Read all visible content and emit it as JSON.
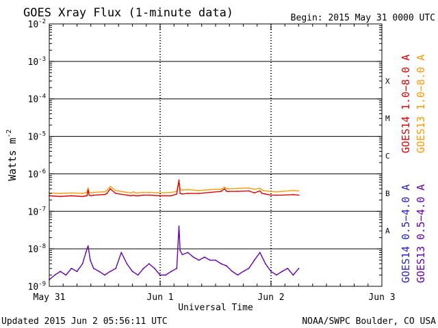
{
  "chart_data": {
    "type": "line",
    "title": "GOES Xray Flux (1-minute data)",
    "begin_label": "Begin:  2015 May 31 0000 UTC",
    "ylabel": "Watts m",
    "ylabel_superscript": "-2",
    "xlabel": "Universal Time",
    "yscale": "log",
    "xlim": [
      0,
      3
    ],
    "ylim": [
      1e-09,
      0.01
    ],
    "grid": true,
    "x_ticks": [
      {
        "value": 0,
        "label": "May 31"
      },
      {
        "value": 1,
        "label": "Jun 1"
      },
      {
        "value": 2,
        "label": "Jun 2"
      },
      {
        "value": 3,
        "label": "Jun 3"
      }
    ],
    "y_ticks": [
      {
        "exp": -9,
        "label_base": "10",
        "label_exp": "-9"
      },
      {
        "exp": -8,
        "label_base": "10",
        "label_exp": "-8"
      },
      {
        "exp": -7,
        "label_base": "10",
        "label_exp": "-7"
      },
      {
        "exp": -6,
        "label_base": "10",
        "label_exp": "-6"
      },
      {
        "exp": -5,
        "label_base": "10",
        "label_exp": "-5"
      },
      {
        "exp": -4,
        "label_base": "10",
        "label_exp": "-4"
      },
      {
        "exp": -3,
        "label_base": "10",
        "label_exp": "-3"
      },
      {
        "exp": -2,
        "label_base": "10",
        "label_exp": "-2"
      }
    ],
    "class_labels": [
      {
        "label": "A",
        "exp": -7.5
      },
      {
        "label": "B",
        "exp": -6.5
      },
      {
        "label": "C",
        "exp": -5.5
      },
      {
        "label": "M",
        "exp": -4.5
      },
      {
        "label": "X",
        "exp": -3.5
      }
    ],
    "legend_long": [
      {
        "name": "GOES14 1.0−8.0 A",
        "color": "#dd0000"
      },
      {
        "name": "GOES13 1.0−8.0 A",
        "color": "#ff9900"
      }
    ],
    "legend_short": [
      {
        "name": "GOES14 0.5−4.0 A",
        "color": "#2222cc"
      },
      {
        "name": "GOES13 0.5−4.0 A",
        "color": "#6600aa"
      }
    ],
    "series": [
      {
        "name": "GOES13 1.0−8.0 A",
        "color": "#ff9900",
        "x": [
          0,
          0.1,
          0.2,
          0.3,
          0.34,
          0.35,
          0.36,
          0.38,
          0.4,
          0.48,
          0.5,
          0.52,
          0.55,
          0.6,
          0.7,
          0.74,
          0.76,
          0.78,
          0.8,
          0.85,
          0.9,
          1.0,
          1.1,
          1.15,
          1.17,
          1.18,
          1.2,
          1.25,
          1.35,
          1.45,
          1.55,
          1.58,
          1.6,
          1.62,
          1.7,
          1.8,
          1.85,
          1.9,
          1.92,
          1.95,
          2.0,
          2.05,
          2.1,
          2.2,
          2.25
        ],
        "values": [
          3.1e-07,
          3e-07,
          3.1e-07,
          3e-07,
          3.2e-07,
          4.2e-07,
          3.2e-07,
          3.1e-07,
          3.2e-07,
          3.3e-07,
          3.3e-07,
          3.6e-07,
          4.6e-07,
          3.6e-07,
          3.2e-07,
          3.1e-07,
          3.3e-07,
          3.1e-07,
          3.1e-07,
          3.2e-07,
          3.2e-07,
          3.1e-07,
          3.2e-07,
          3.4e-07,
          6.5e-07,
          3.9e-07,
          3.7e-07,
          3.8e-07,
          3.6e-07,
          3.8e-07,
          3.9e-07,
          4.4e-07,
          4e-07,
          4e-07,
          4.1e-07,
          4.2e-07,
          3.9e-07,
          4.1e-07,
          3.7e-07,
          3.5e-07,
          3.4e-07,
          3.3e-07,
          3.4e-07,
          3.6e-07,
          3.5e-07
        ]
      },
      {
        "name": "GOES14 1.0−8.0 A",
        "color": "#dd0000",
        "x": [
          0,
          0.1,
          0.2,
          0.3,
          0.34,
          0.35,
          0.36,
          0.38,
          0.4,
          0.48,
          0.5,
          0.52,
          0.55,
          0.6,
          0.7,
          0.74,
          0.76,
          0.78,
          0.8,
          0.85,
          0.9,
          1.0,
          1.1,
          1.15,
          1.17,
          1.18,
          1.2,
          1.25,
          1.35,
          1.45,
          1.55,
          1.58,
          1.6,
          1.62,
          1.7,
          1.8,
          1.85,
          1.9,
          1.92,
          1.95,
          2.0,
          2.05,
          2.1,
          2.2,
          2.25
        ],
        "values": [
          2.6e-07,
          2.5e-07,
          2.6e-07,
          2.5e-07,
          2.6e-07,
          3.7e-07,
          2.7e-07,
          2.6e-07,
          2.7e-07,
          2.8e-07,
          2.8e-07,
          3e-07,
          4e-07,
          3e-07,
          2.7e-07,
          2.6e-07,
          2.7e-07,
          2.6e-07,
          2.6e-07,
          2.7e-07,
          2.7e-07,
          2.6e-07,
          2.6e-07,
          2.9e-07,
          6.8e-07,
          3e-07,
          2.9e-07,
          3e-07,
          3e-07,
          3.2e-07,
          3.4e-07,
          4e-07,
          3.4e-07,
          3.4e-07,
          3.4e-07,
          3.5e-07,
          3.1e-07,
          3.5e-07,
          3e-07,
          2.9e-07,
          2.7e-07,
          2.7e-07,
          2.7e-07,
          2.8e-07,
          2.7e-07
        ]
      },
      {
        "name": "GOES13 0.5−4.0 A",
        "color": "#6600aa",
        "x": [
          0,
          0.05,
          0.1,
          0.15,
          0.2,
          0.25,
          0.3,
          0.33,
          0.35,
          0.37,
          0.4,
          0.45,
          0.5,
          0.55,
          0.6,
          0.65,
          0.7,
          0.75,
          0.8,
          0.85,
          0.9,
          0.95,
          1.0,
          1.05,
          1.1,
          1.15,
          1.17,
          1.18,
          1.2,
          1.25,
          1.3,
          1.35,
          1.4,
          1.45,
          1.5,
          1.55,
          1.6,
          1.65,
          1.7,
          1.75,
          1.8,
          1.85,
          1.9,
          1.95,
          2.0,
          2.05,
          2.1,
          2.15,
          2.2,
          2.25
        ],
        "values": [
          1.5e-09,
          2e-09,
          2.5e-09,
          2e-09,
          3e-09,
          2.5e-09,
          4e-09,
          8e-09,
          1.2e-08,
          5e-09,
          3e-09,
          2.5e-09,
          2e-09,
          2.5e-09,
          3e-09,
          8e-09,
          4e-09,
          2.5e-09,
          2e-09,
          3e-09,
          4e-09,
          3e-09,
          2e-09,
          2e-09,
          2.5e-09,
          3e-09,
          4e-08,
          9e-09,
          7e-09,
          8e-09,
          6e-09,
          5e-09,
          6e-09,
          5e-09,
          5e-09,
          4e-09,
          3.5e-09,
          2.5e-09,
          2e-09,
          2.5e-09,
          3e-09,
          5e-09,
          8e-09,
          4e-09,
          2.5e-09,
          2e-09,
          2.5e-09,
          3e-09,
          2e-09,
          3e-09
        ]
      }
    ]
  },
  "footer": {
    "updated": "Updated 2015 Jun  2 05:56:11 UTC",
    "credit": "NOAA/SWPC Boulder, CO USA"
  }
}
